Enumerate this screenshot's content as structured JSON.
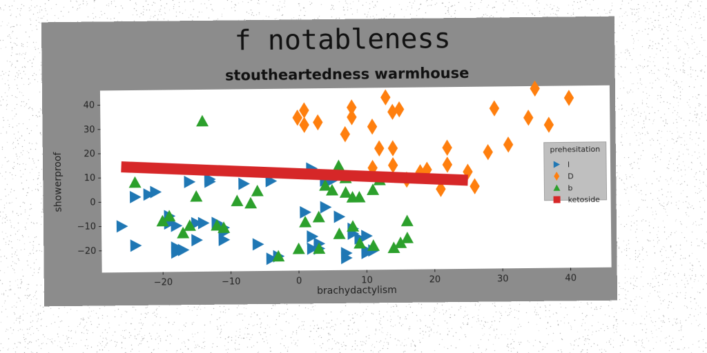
{
  "chart_data": {
    "type": "scatter",
    "title": "f notableness",
    "subtitle": "stoutheartedness warmhouse",
    "xlabel": "brachydactylism",
    "ylabel": "showerproof",
    "xlim": [
      -29,
      46
    ],
    "ylim": [
      -29,
      46
    ],
    "xticks": [
      -20,
      -10,
      0,
      10,
      20,
      30,
      40
    ],
    "yticks": [
      -20,
      -10,
      0,
      10,
      20,
      30,
      40
    ],
    "xtick_labels": [
      "−20",
      "−10",
      "0",
      "10",
      "20",
      "30",
      "40"
    ],
    "ytick_labels": [
      "−20",
      "−10",
      "0",
      "10",
      "20",
      "30",
      "40"
    ],
    "grid": false,
    "legend": {
      "title": "prehesitation",
      "placement": "right",
      "entries": [
        {
          "label": "l",
          "marker": "triangle-right",
          "color": "#1f77b4"
        },
        {
          "label": "D",
          "marker": "diamond",
          "color": "#ff7f0e"
        },
        {
          "label": "b",
          "marker": "triangle-up",
          "color": "#2ca02c"
        },
        {
          "label": "ketoside",
          "marker": "square",
          "color": "#d62728"
        }
      ]
    },
    "series": [
      {
        "name": "l",
        "marker": "triangle-right",
        "color": "#1f77b4",
        "points": [
          [
            -26,
            -10
          ],
          [
            -24,
            2
          ],
          [
            -24,
            -18
          ],
          [
            -22,
            3
          ],
          [
            -21,
            4
          ],
          [
            -19,
            -6
          ],
          [
            -19,
            -9
          ],
          [
            -18,
            -10
          ],
          [
            -18,
            -19
          ],
          [
            -18,
            -21
          ],
          [
            -17,
            -20
          ],
          [
            -16,
            8
          ],
          [
            -15,
            -16
          ],
          [
            -15,
            -9
          ],
          [
            -14,
            -9
          ],
          [
            -13,
            8
          ],
          [
            -13,
            9
          ],
          [
            -12,
            -9
          ],
          [
            -11,
            -11
          ],
          [
            -11,
            -16
          ],
          [
            -11,
            -13
          ],
          [
            -8,
            7
          ],
          [
            -6,
            -18
          ],
          [
            -4,
            8
          ],
          [
            -4,
            -24
          ],
          [
            -3,
            -23
          ],
          [
            1,
            -5
          ],
          [
            2,
            -20
          ],
          [
            2,
            -15
          ],
          [
            2,
            13
          ],
          [
            3,
            -18
          ],
          [
            3,
            -20
          ],
          [
            4,
            -3
          ],
          [
            4,
            8
          ],
          [
            5,
            8
          ],
          [
            6,
            -7
          ],
          [
            7,
            -22
          ],
          [
            7,
            -24
          ],
          [
            8,
            -12
          ],
          [
            8,
            -14
          ],
          [
            9,
            -16
          ],
          [
            10,
            -21
          ],
          [
            10,
            -15
          ],
          [
            10,
            -22
          ],
          [
            11,
            -21
          ]
        ]
      },
      {
        "name": "D",
        "marker": "diamond",
        "color": "#ff7f0e",
        "points": [
          [
            0,
            34
          ],
          [
            1,
            37
          ],
          [
            1,
            31
          ],
          [
            3,
            32
          ],
          [
            7,
            27
          ],
          [
            8,
            38
          ],
          [
            8,
            34
          ],
          [
            11,
            13
          ],
          [
            11,
            30
          ],
          [
            12,
            21
          ],
          [
            13,
            42
          ],
          [
            14,
            36
          ],
          [
            14,
            21
          ],
          [
            14,
            14
          ],
          [
            15,
            37
          ],
          [
            16,
            8
          ],
          [
            18,
            11
          ],
          [
            19,
            12
          ],
          [
            21,
            4
          ],
          [
            22,
            14
          ],
          [
            22,
            21
          ],
          [
            25,
            11
          ],
          [
            26,
            5
          ],
          [
            28,
            19
          ],
          [
            29,
            37
          ],
          [
            31,
            22
          ],
          [
            34,
            33
          ],
          [
            35,
            45
          ],
          [
            37,
            30
          ],
          [
            40,
            41
          ]
        ]
      },
      {
        "name": "b",
        "marker": "triangle-up",
        "color": "#2ca02c",
        "points": [
          [
            -24,
            8
          ],
          [
            -20,
            -8
          ],
          [
            -19,
            -6
          ],
          [
            -17,
            -13
          ],
          [
            -16,
            -10
          ],
          [
            -15,
            2
          ],
          [
            -14,
            33
          ],
          [
            -12,
            -10
          ],
          [
            -11,
            -11
          ],
          [
            -9,
            0
          ],
          [
            -7,
            -1
          ],
          [
            -6,
            4
          ],
          [
            -3,
            -23
          ],
          [
            0,
            -20
          ],
          [
            1,
            -9
          ],
          [
            3,
            -7
          ],
          [
            3,
            -20
          ],
          [
            4,
            6
          ],
          [
            5,
            4
          ],
          [
            6,
            -14
          ],
          [
            6,
            14
          ],
          [
            7,
            9
          ],
          [
            7,
            3
          ],
          [
            8,
            -11
          ],
          [
            8,
            1
          ],
          [
            9,
            -18
          ],
          [
            9,
            1
          ],
          [
            11,
            4
          ],
          [
            11,
            -19
          ],
          [
            12,
            8
          ],
          [
            14,
            -20
          ],
          [
            15,
            -18
          ],
          [
            16,
            -9
          ],
          [
            16,
            -16
          ]
        ]
      },
      {
        "name": "ketoside",
        "marker": "line",
        "color": "#d62728",
        "points": [
          [
            -26,
            14.5
          ],
          [
            25,
            7.5
          ]
        ]
      }
    ]
  }
}
